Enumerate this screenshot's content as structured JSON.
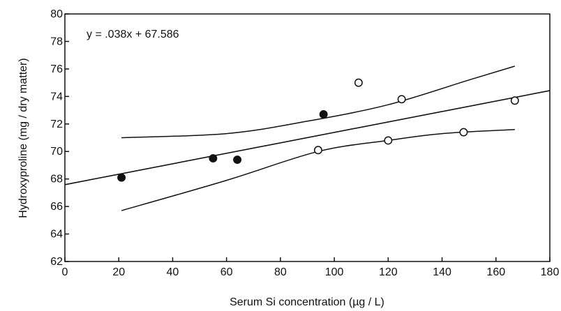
{
  "chart_data": {
    "type": "scatter",
    "xlabel": "Serum Si concentration (µg / L)",
    "ylabel": "Hydroxyproline (mg / dry matter)",
    "xlim": [
      0,
      180
    ],
    "ylim": [
      62,
      80
    ],
    "xticks": [
      0,
      20,
      40,
      60,
      80,
      100,
      120,
      140,
      160,
      180
    ],
    "yticks": [
      62,
      64,
      66,
      68,
      70,
      72,
      74,
      76,
      78,
      80
    ],
    "grid": false,
    "annotation": "y = .038x + 67.586",
    "series": [
      {
        "marker": "filled-circle",
        "points": [
          [
            21,
            68.1
          ],
          [
            55,
            69.5
          ],
          [
            64,
            69.4
          ],
          [
            96,
            72.7
          ]
        ]
      },
      {
        "marker": "open-circle",
        "points": [
          [
            94,
            70.1
          ],
          [
            109,
            75.0
          ],
          [
            120,
            70.8
          ],
          [
            125,
            73.8
          ],
          [
            148,
            71.4
          ],
          [
            167,
            73.7
          ]
        ]
      }
    ],
    "regression": {
      "slope": 0.038,
      "intercept": 67.586,
      "x_range": [
        0,
        180
      ]
    },
    "confidence_upper": [
      [
        21,
        71.0
      ],
      [
        60,
        71.3
      ],
      [
        90,
        72.2
      ],
      [
        120,
        73.4
      ],
      [
        150,
        75.2
      ],
      [
        167,
        76.2
      ]
    ],
    "confidence_lower": [
      [
        21,
        65.7
      ],
      [
        60,
        67.9
      ],
      [
        94,
        70.0
      ],
      [
        120,
        70.8
      ],
      [
        140,
        71.3
      ],
      [
        167,
        71.6
      ]
    ]
  }
}
